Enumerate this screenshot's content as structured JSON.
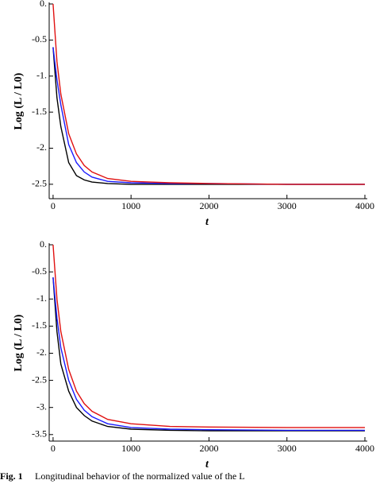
{
  "chart_data": [
    {
      "type": "line",
      "xlabel": "t",
      "ylabel": "Log (L / L0)",
      "x": [
        0,
        50,
        100,
        200,
        300,
        400,
        500,
        700,
        1000,
        1500,
        2000,
        3000,
        4000
      ],
      "series": [
        {
          "color": "#000000",
          "values": [
            -0.6,
            -1.3,
            -1.7,
            -2.2,
            -2.38,
            -2.44,
            -2.47,
            -2.49,
            -2.5,
            -2.5,
            -2.5,
            -2.5,
            -2.5
          ]
        },
        {
          "color": "#1a1aff",
          "values": [
            -0.6,
            -1.05,
            -1.4,
            -1.95,
            -2.2,
            -2.33,
            -2.4,
            -2.46,
            -2.48,
            -2.49,
            -2.49,
            -2.5,
            -2.5
          ]
        },
        {
          "color": "#e01010",
          "values": [
            0,
            -0.8,
            -1.25,
            -1.8,
            -2.08,
            -2.24,
            -2.33,
            -2.42,
            -2.46,
            -2.48,
            -2.49,
            -2.5,
            -2.5
          ]
        }
      ],
      "xlim": [
        -50,
        4000
      ],
      "xticks": [
        0,
        1000,
        2000,
        3000,
        4000
      ],
      "ylim": [
        -2.7,
        0
      ],
      "yticks": [
        {
          "value": 0,
          "label": "0."
        },
        -0.5,
        {
          "value": -1,
          "label": "-1."
        },
        -1.5,
        {
          "value": -2,
          "label": "-2."
        },
        -2.5
      ]
    },
    {
      "type": "line",
      "xlabel": "t",
      "ylabel": "Log (L / L0)",
      "x": [
        0,
        50,
        100,
        200,
        300,
        400,
        500,
        700,
        1000,
        1500,
        2000,
        3000,
        4000
      ],
      "series": [
        {
          "color": "#000000",
          "values": [
            -0.6,
            -1.6,
            -2.2,
            -2.7,
            -3.0,
            -3.15,
            -3.25,
            -3.35,
            -3.4,
            -3.42,
            -3.43,
            -3.43,
            -3.43
          ]
        },
        {
          "color": "#1a1aff",
          "values": [
            -0.6,
            -1.35,
            -1.9,
            -2.5,
            -2.85,
            -3.05,
            -3.17,
            -3.3,
            -3.37,
            -3.4,
            -3.41,
            -3.42,
            -3.42
          ]
        },
        {
          "color": "#e01010",
          "values": [
            0,
            -1.0,
            -1.6,
            -2.3,
            -2.7,
            -2.93,
            -3.07,
            -3.22,
            -3.3,
            -3.35,
            -3.36,
            -3.37,
            -3.37
          ]
        }
      ],
      "xlim": [
        -50,
        4000
      ],
      "xticks": [
        0,
        1000,
        2000,
        3000,
        4000
      ],
      "ylim": [
        -3.62,
        0
      ],
      "yticks": [
        {
          "value": 0,
          "label": "0."
        },
        -0.5,
        {
          "value": -1,
          "label": "-1."
        },
        -1.5,
        {
          "value": -2,
          "label": "-2."
        },
        -2.5,
        {
          "value": -3,
          "label": "-3."
        },
        -3.5
      ]
    }
  ],
  "caption_label": "Fig. 1",
  "caption": "Longitudinal behavior of the normalized value of the L"
}
